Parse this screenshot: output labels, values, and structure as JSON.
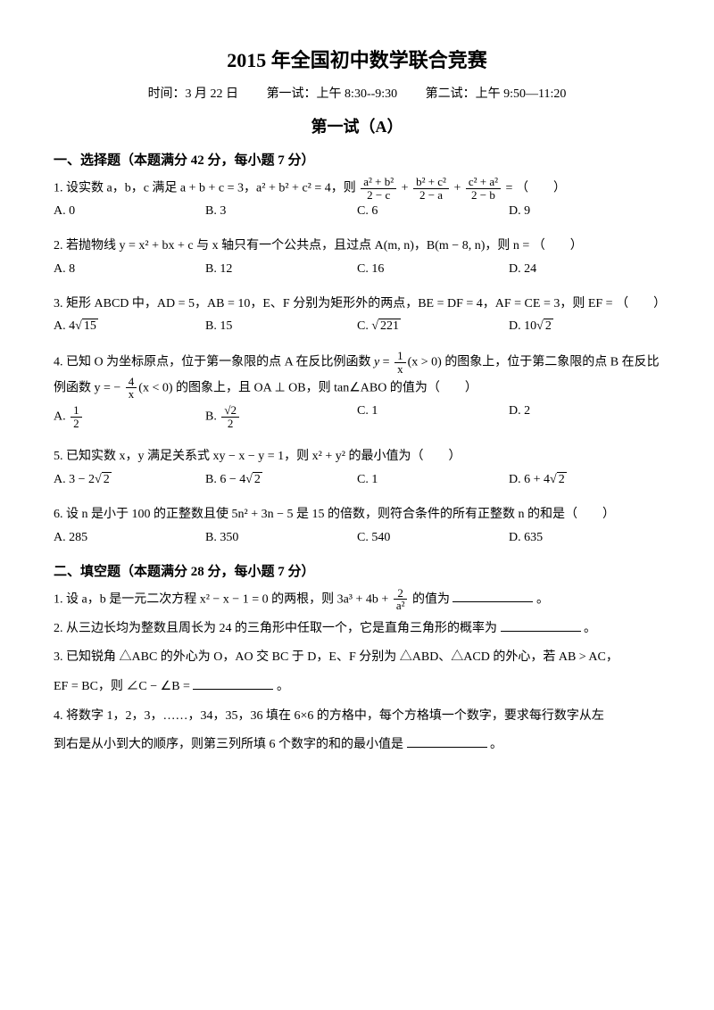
{
  "header": {
    "title": "2015 年全国初中数学联合竞赛",
    "date_label": "时间：3 月 22 日",
    "exam1_label": "第一试：上午 8:30--9:30",
    "exam2_label": "第二试：上午 9:50—11:20",
    "subtitle": "第一试（A）"
  },
  "sectionA": {
    "heading": "一、选择题（本题满分 42 分，每小题 7 分）",
    "q1": {
      "stem_pre": "1.  设实数 a，b，c 满足 a + b + c = 3，a² + b² + c² = 4，则 ",
      "stem_post": " = （　　）",
      "frac1_num": "a² + b²",
      "frac1_den": "2 − c",
      "frac2_num": "b² + c²",
      "frac2_den": "2 − a",
      "frac3_num": "c² + a²",
      "frac3_den": "2 − b",
      "A": "A. 0",
      "B": "B. 3",
      "C": "C. 6",
      "D": "D. 9"
    },
    "q2": {
      "stem": "2.  若抛物线 y = x² + bx + c 与 x 轴只有一个公共点，且过点 A(m, n)，B(m − 8, n)，则 n = （　　）",
      "A": "A. 8",
      "B": "B. 12",
      "C": "C. 16",
      "D": "D. 24"
    },
    "q3": {
      "stem": "3.  矩形 ABCD 中，AD = 5，AB = 10，E、F 分别为矩形外的两点，BE = DF = 4，AF = CE = 3，则 EF = （　　）",
      "A_pre": "A.  4",
      "A_rad": "15",
      "B": "B.  15",
      "C_pre": "C.  ",
      "C_rad": "221",
      "D_pre": "D.  10",
      "D_rad": "2"
    },
    "q4": {
      "stem_pre": "4.  已知 O 为坐标原点，位于第一象限的点 A 在反比例函数 ",
      "f1_num": "1",
      "f1_den": "x",
      "f1_cond": "(x > 0)",
      "stem_mid": " 的图象上，位于第二象限的点 B 在反比例函数 ",
      "f2_pre": "y = −",
      "f2_num": "4",
      "f2_den": "x",
      "f2_cond": "(x < 0)",
      "stem_end": " 的图象上，且 OA ⊥ OB，则 tan∠ABO 的值为（　　）",
      "A_num": "1",
      "A_den": "2",
      "B_num": "√2",
      "B_den": "2",
      "C": "C. 1",
      "D": "D. 2"
    },
    "q5": {
      "stem": "5.  已知实数 x，y 满足关系式 xy − x − y = 1，则 x² + y² 的最小值为（　　）",
      "A_pre": "A.  3 − 2",
      "A_rad": "2",
      "B_pre": "B.  6 − 4",
      "B_rad": "2",
      "C": "C.  1",
      "D_pre": "D.  6 + 4",
      "D_rad": "2"
    },
    "q6": {
      "stem": "6.  设 n 是小于 100 的正整数且使 5n² + 3n − 5 是 15 的倍数，则符合条件的所有正整数 n 的和是（　　）",
      "A": "A. 285",
      "B": "B. 350",
      "C": "C. 540",
      "D": "D. 635"
    }
  },
  "sectionB": {
    "heading": "二、填空题（本题满分 28 分，每小题 7 分）",
    "q1": {
      "stem_pre": "1.  设 a，b 是一元二次方程 x² − x − 1 = 0 的两根，则 3a³ + 4b + ",
      "frac_num": "2",
      "frac_den": "a²",
      "stem_mid": " 的值为",
      "stem_end": "。"
    },
    "q2": {
      "stem_pre": "2.  从三边长均为整数且周长为 24 的三角形中任取一个，它是直角三角形的概率为",
      "stem_end": "。"
    },
    "q3": {
      "line1": "3.  已知锐角 △ABC 的外心为 O，AO 交 BC 于 D，E、F 分别为 △ABD、△ACD 的外心，若 AB > AC，",
      "line2_pre": "EF = BC，则 ∠C − ∠B = ",
      "line2_end": "。"
    },
    "q4": {
      "line1": "4.  将数字 1，2，3，……，34，35，36 填在 6×6 的方格中，每个方格填一个数字，要求每行数字从左",
      "line2_pre": "到右是从小到大的顺序，则第三列所填 6 个数字的和的最小值是",
      "line2_end": "。"
    }
  }
}
